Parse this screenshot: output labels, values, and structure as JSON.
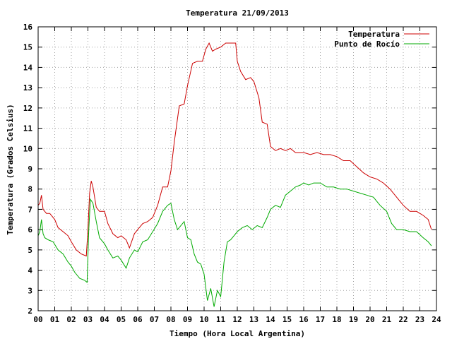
{
  "chart_data": {
    "type": "line",
    "title": "Temperatura 21/09/2013",
    "xlabel": "Tiempo (Hora Local Argentina)",
    "ylabel": "Temperatura (Grados Celsius)",
    "xlim": [
      0,
      24
    ],
    "ylim": [
      2,
      16
    ],
    "grid": true,
    "legend_position": "top-right",
    "x_ticks": [
      "00",
      "01",
      "02",
      "03",
      "04",
      "05",
      "06",
      "07",
      "08",
      "09",
      "10",
      "11",
      "12",
      "13",
      "14",
      "15",
      "16",
      "17",
      "18",
      "19",
      "20",
      "21",
      "22",
      "23",
      "24"
    ],
    "y_ticks": [
      "2",
      "3",
      "4",
      "5",
      "6",
      "7",
      "8",
      "9",
      "10",
      "11",
      "12",
      "13",
      "14",
      "15",
      "16"
    ],
    "series": [
      {
        "name": "Temperatura",
        "color": "#cc0000",
        "x": [
          0.0,
          0.1,
          0.2,
          0.3,
          0.4,
          0.5,
          0.7,
          1.0,
          1.2,
          1.5,
          1.8,
          2.0,
          2.3,
          2.6,
          2.9,
          3.0,
          3.1,
          3.2,
          3.3,
          3.5,
          3.7,
          4.0,
          4.2,
          4.5,
          4.8,
          5.0,
          5.3,
          5.5,
          5.8,
          6.0,
          6.3,
          6.6,
          6.9,
          7.2,
          7.5,
          7.8,
          8.0,
          8.2,
          8.5,
          8.8,
          9.0,
          9.3,
          9.6,
          9.9,
          10.1,
          10.3,
          10.5,
          10.7,
          11.0,
          11.3,
          11.6,
          11.9,
          12.0,
          12.2,
          12.5,
          12.8,
          13.0,
          13.3,
          13.5,
          13.8,
          14.0,
          14.3,
          14.6,
          14.9,
          15.2,
          15.5,
          15.8,
          16.0,
          16.4,
          16.8,
          17.2,
          17.6,
          18.0,
          18.4,
          18.8,
          19.2,
          19.6,
          20.0,
          20.4,
          20.8,
          21.2,
          21.6,
          22.0,
          22.4,
          22.8,
          23.2,
          23.5,
          23.7
        ],
        "y": [
          7.2,
          7.3,
          7.7,
          7.0,
          6.9,
          6.8,
          6.8,
          6.5,
          6.1,
          5.9,
          5.7,
          5.4,
          5.0,
          4.8,
          4.7,
          6.0,
          7.8,
          8.4,
          8.1,
          7.1,
          6.9,
          6.9,
          6.3,
          5.8,
          5.6,
          5.7,
          5.5,
          5.1,
          5.8,
          6.0,
          6.3,
          6.4,
          6.6,
          7.2,
          8.1,
          8.1,
          8.9,
          10.3,
          12.1,
          12.2,
          13.1,
          14.2,
          14.3,
          14.3,
          14.9,
          15.2,
          14.8,
          14.9,
          15.0,
          15.2,
          15.2,
          15.2,
          14.3,
          13.8,
          13.4,
          13.5,
          13.3,
          12.5,
          11.3,
          11.2,
          10.1,
          9.9,
          10.0,
          9.9,
          10.0,
          9.8,
          9.8,
          9.8,
          9.7,
          9.8,
          9.7,
          9.7,
          9.6,
          9.4,
          9.4,
          9.1,
          8.8,
          8.6,
          8.5,
          8.3,
          8.0,
          7.6,
          7.2,
          6.9,
          6.9,
          6.7,
          6.5,
          6.0
        ]
      },
      {
        "name": "Punto de Rocío",
        "color": "#00aa00",
        "x": [
          0.0,
          0.1,
          0.2,
          0.3,
          0.4,
          0.6,
          0.9,
          1.2,
          1.5,
          1.8,
          2.0,
          2.2,
          2.5,
          2.8,
          2.95,
          3.05,
          3.15,
          3.3,
          3.5,
          3.7,
          4.0,
          4.2,
          4.5,
          4.8,
          5.0,
          5.3,
          5.5,
          5.8,
          6.0,
          6.3,
          6.6,
          6.9,
          7.2,
          7.5,
          7.8,
          8.0,
          8.2,
          8.4,
          8.6,
          8.8,
          9.0,
          9.2,
          9.4,
          9.6,
          9.8,
          10.0,
          10.2,
          10.4,
          10.6,
          10.8,
          11.0,
          11.2,
          11.4,
          11.6,
          11.8,
          12.0,
          12.3,
          12.6,
          12.9,
          13.2,
          13.5,
          13.8,
          14.0,
          14.3,
          14.6,
          14.9,
          15.2,
          15.5,
          15.8,
          16.0,
          16.3,
          16.6,
          17.0,
          17.4,
          17.8,
          18.2,
          18.6,
          19.0,
          19.4,
          19.8,
          20.2,
          20.6,
          21.0,
          21.3,
          21.6,
          22.0,
          22.4,
          22.8,
          23.2,
          23.5,
          23.7
        ],
        "y": [
          5.7,
          5.9,
          6.5,
          5.8,
          5.6,
          5.5,
          5.4,
          5.0,
          4.8,
          4.4,
          4.2,
          3.9,
          3.6,
          3.5,
          3.4,
          6.0,
          7.5,
          7.3,
          6.4,
          5.6,
          5.3,
          5.0,
          4.6,
          4.7,
          4.5,
          4.1,
          4.6,
          5.0,
          4.9,
          5.4,
          5.5,
          5.9,
          6.3,
          6.9,
          7.2,
          7.3,
          6.5,
          6.0,
          6.2,
          6.4,
          5.6,
          5.5,
          4.8,
          4.4,
          4.3,
          3.8,
          2.5,
          3.1,
          2.2,
          3.0,
          2.7,
          4.4,
          5.4,
          5.5,
          5.7,
          5.9,
          6.1,
          6.2,
          6.0,
          6.2,
          6.1,
          6.6,
          7.0,
          7.2,
          7.1,
          7.7,
          7.9,
          8.1,
          8.2,
          8.3,
          8.2,
          8.3,
          8.3,
          8.1,
          8.1,
          8.0,
          8.0,
          7.9,
          7.8,
          7.7,
          7.6,
          7.2,
          6.9,
          6.3,
          6.0,
          6.0,
          5.9,
          5.9,
          5.6,
          5.4,
          5.2
        ]
      }
    ]
  }
}
